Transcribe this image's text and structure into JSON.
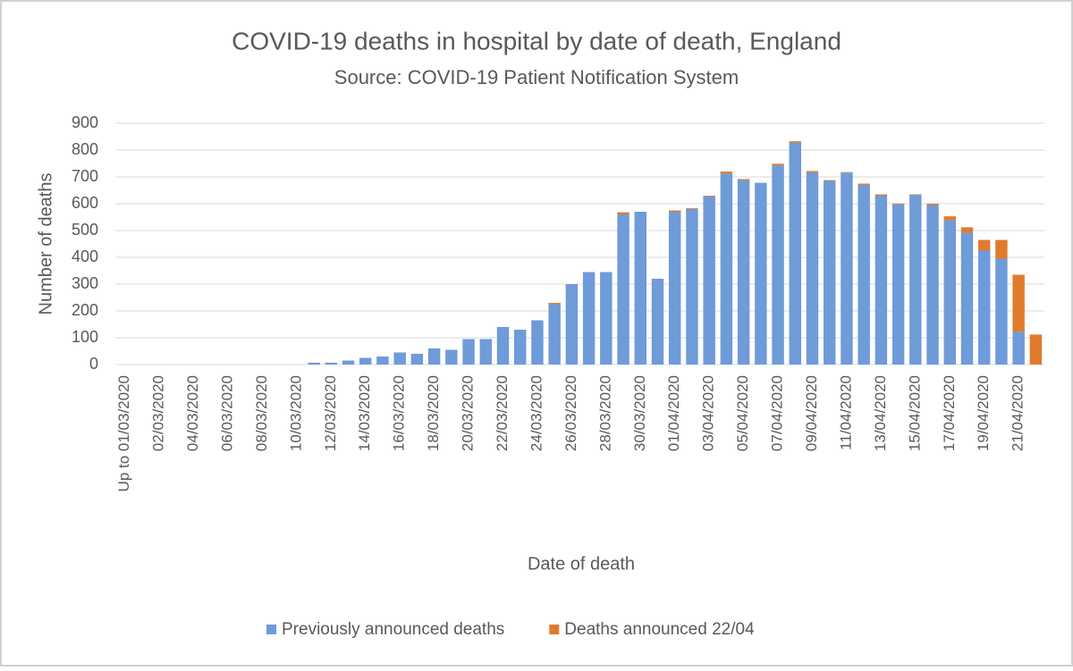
{
  "chart_data": {
    "type": "stacked_bar",
    "title": "COVID-19 deaths in hospital by date of death, England",
    "subtitle": "Source: COVID-19 Patient Notification System",
    "x_label": "Date of death",
    "y_label": "Number of deaths",
    "categories": [
      "Up to  01/03/2020",
      null,
      "02/03/2020",
      null,
      "04/03/2020",
      null,
      "06/03/2020",
      null,
      "08/03/2020",
      null,
      "10/03/2020",
      null,
      "12/03/2020",
      null,
      "14/03/2020",
      null,
      "16/03/2020",
      null,
      "18/03/2020",
      null,
      "20/03/2020",
      null,
      "22/03/2020",
      null,
      "24/03/2020",
      null,
      "26/03/2020",
      null,
      "28/03/2020",
      null,
      "30/03/2020",
      null,
      "01/04/2020",
      null,
      "03/04/2020",
      null,
      "05/04/2020",
      null,
      "07/04/2020",
      null,
      "09/04/2020",
      null,
      "11/04/2020",
      null,
      "13/04/2020",
      null,
      "15/04/2020",
      null,
      "17/04/2020",
      null,
      "19/04/2020",
      null,
      "21/04/2020",
      null
    ],
    "series": [
      {
        "name": "Previously announced deaths",
        "color": "#6f9bd8",
        "values": [
          0,
          0,
          0,
          0,
          0,
          0,
          0,
          0,
          0,
          0,
          0,
          7,
          7,
          15,
          25,
          30,
          45,
          40,
          60,
          55,
          95,
          95,
          140,
          130,
          165,
          225,
          300,
          345,
          345,
          560,
          570,
          320,
          570,
          580,
          627,
          712,
          688,
          678,
          743,
          828,
          717,
          685,
          716,
          670,
          630,
          598,
          633,
          595,
          538,
          492,
          425,
          395,
          122,
          0
        ]
      },
      {
        "name": "Deaths announced 22/04",
        "color": "#e07b2e",
        "values": [
          0,
          0,
          0,
          0,
          0,
          0,
          0,
          0,
          0,
          0,
          0,
          0,
          0,
          0,
          0,
          0,
          0,
          0,
          0,
          0,
          0,
          0,
          0,
          0,
          0,
          5,
          0,
          0,
          0,
          8,
          0,
          0,
          5,
          3,
          3,
          8,
          4,
          0,
          6,
          5,
          5,
          3,
          2,
          5,
          5,
          3,
          2,
          5,
          15,
          20,
          40,
          70,
          213,
          112
        ]
      }
    ],
    "ylim": [
      0,
      900
    ],
    "yticks": [
      0,
      100,
      200,
      300,
      400,
      500,
      600,
      700,
      800,
      900
    ],
    "grid": true,
    "legend": "bottom"
  }
}
